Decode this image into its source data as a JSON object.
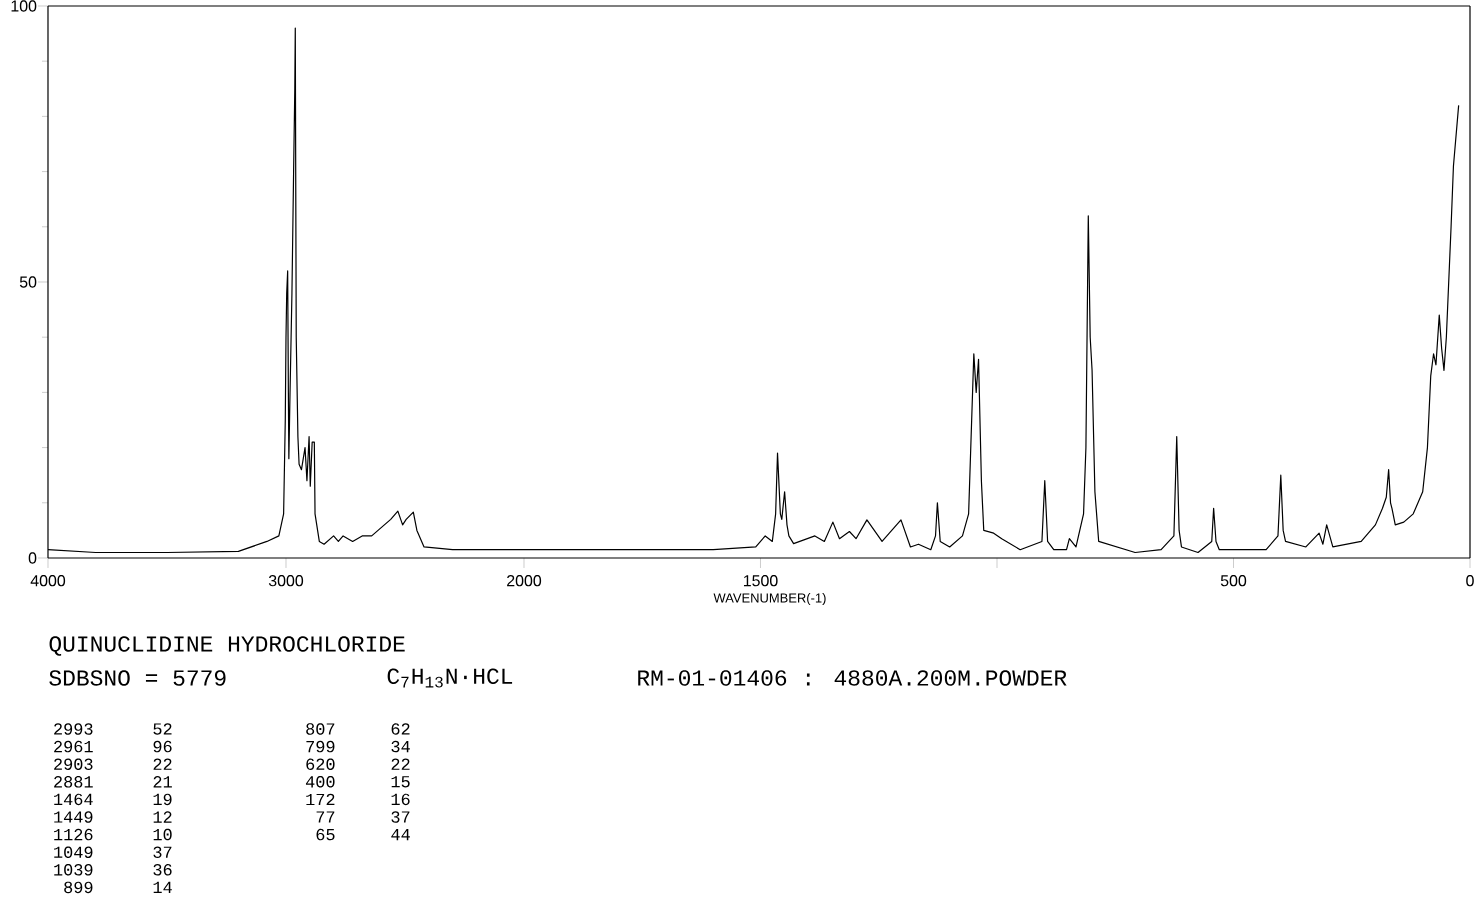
{
  "chart_data": [
    {
      "type": "line",
      "title": "QUINUCLIDINE HYDROCHLORIDE",
      "xlim": [
        4000,
        2000
      ],
      "ylim": [
        0,
        100
      ],
      "xticks": [
        4000,
        3000,
        2000
      ],
      "yticks": [
        0,
        50,
        100
      ],
      "series": [
        {
          "color": "#000000",
          "x": [
            4000,
            3800,
            3500,
            3200,
            3080,
            3030,
            3010,
            3003,
            3000,
            2997,
            2993,
            2990,
            2988,
            2983,
            2975,
            2968,
            2963,
            2961,
            2957,
            2950,
            2945,
            2935,
            2920,
            2912,
            2903,
            2898,
            2890,
            2881,
            2878,
            2860,
            2840,
            2800,
            2780,
            2760,
            2720,
            2680,
            2640,
            2600,
            2560,
            2530,
            2510,
            2495,
            2465,
            2450,
            2420,
            2300,
            2100,
            2000
          ],
          "values": [
            1.5,
            1,
            1,
            1.2,
            3,
            4,
            8,
            25,
            40,
            48,
            52,
            30,
            18,
            30,
            48,
            70,
            85,
            96,
            40,
            22,
            17,
            16,
            20,
            14,
            22,
            13,
            21,
            21,
            8,
            3,
            2.5,
            4,
            3,
            4,
            3,
            4,
            4,
            5.5,
            7,
            8.5,
            6,
            7,
            8.3,
            5,
            2,
            1.5,
            1.5,
            1.5
          ]
        }
      ],
      "annotations": [
        "SDBSNO = 5779",
        "C$_{7}$H$_{13}$N·HCL",
        "RM-01-01406 : 4880A.200M.POWDER",
        "2993",
        "52",
        "2961",
        "96",
        "2903",
        "22",
        "2881",
        "21",
        "1464",
        "19",
        "1449",
        "12",
        "1126",
        "10",
        "1049",
        "37",
        "1039",
        "36",
        "899",
        "14",
        "807",
        "62",
        "799",
        "34",
        "620",
        "22",
        "400",
        "15",
        "172",
        "16",
        "77",
        "37",
        "65",
        "44"
      ]
    },
    {
      "type": "line",
      "xlabel": "WAVENUMBER(-1)",
      "xlim": [
        2000,
        0
      ],
      "ylim": [
        0,
        100
      ],
      "xticks": [
        1500,
        {
          "value": 1000,
          "label": null
        },
        500,
        0
      ],
      "tick_labels": "x",
      "series": [
        {
          "color": "#000000",
          "x": [
            2000,
            1900,
            1600,
            1510,
            1490,
            1475,
            1468,
            1464,
            1458,
            1455,
            1449,
            1444,
            1440,
            1430,
            1385,
            1365,
            1347,
            1333,
            1312,
            1298,
            1275,
            1243,
            1203,
            1183,
            1166,
            1140,
            1130,
            1126,
            1120,
            1100,
            1073,
            1060,
            1049,
            1044,
            1039,
            1033,
            1028,
            1007,
            990,
            951,
            905,
            899,
            893,
            880,
            853,
            847,
            833,
            817,
            812,
            807,
            803,
            799,
            793,
            785,
            708,
            653,
            626,
            620,
            615,
            610,
            575,
            546,
            542,
            537,
            530,
            431,
            406,
            400,
            395,
            390,
            347,
            319,
            311,
            303,
            290,
            230,
            200,
            185,
            177,
            172,
            168,
            165,
            158,
            140,
            120,
            100,
            90,
            83,
            77,
            72,
            65,
            60,
            55,
            50,
            40,
            35,
            24
          ],
          "values": [
            1.5,
            1.5,
            1.5,
            2,
            4,
            3,
            8,
            19,
            8,
            7,
            12,
            6,
            4,
            2.6,
            4,
            3,
            6.5,
            3.5,
            4.8,
            3.5,
            6.9,
            3,
            6.9,
            2,
            2.5,
            1.5,
            4,
            10,
            3,
            2,
            4,
            8,
            37,
            30,
            36,
            14,
            5,
            4.5,
            3.5,
            1.5,
            3,
            14,
            3,
            1.5,
            1.5,
            3.5,
            2,
            8,
            20,
            62,
            40,
            34,
            12,
            3,
            1,
            1.5,
            4,
            22,
            5,
            2,
            1,
            3,
            9,
            3,
            1.5,
            1.5,
            4,
            15,
            5,
            3,
            2,
            4.5,
            2.5,
            6,
            2,
            3,
            6,
            9,
            11,
            16,
            10,
            9,
            6,
            6.5,
            8,
            12,
            20,
            33,
            37,
            35,
            44,
            38,
            34,
            40,
            60,
            71,
            82
          ]
        }
      ]
    }
  ]
}
